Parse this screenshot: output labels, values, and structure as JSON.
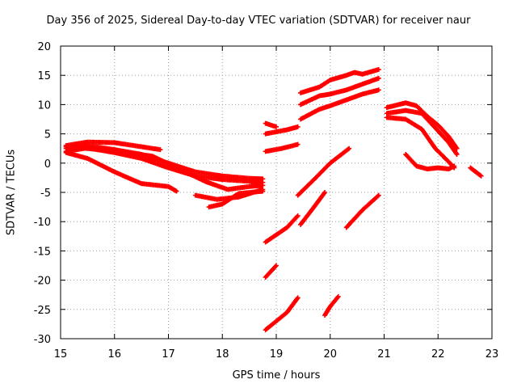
{
  "chart_data": {
    "type": "scatter",
    "title": "Day 356 of 2025, Sidereal Day-to-day VTEC variation (SDTVAR) for receiver naur",
    "xlabel": "GPS time / hours",
    "ylabel": "SDTVAR / TECUs",
    "xlim": [
      15,
      23
    ],
    "ylim": [
      -30,
      20
    ],
    "xticks": [
      "15",
      "16",
      "17",
      "18",
      "19",
      "20",
      "21",
      "22",
      "23"
    ],
    "yticks": [
      "20",
      "15",
      "10",
      "5",
      "0",
      "-5",
      "-10",
      "-15",
      "-20",
      "-25",
      "-30"
    ],
    "grid": true,
    "marker_color": "#ff0000",
    "series": [
      {
        "points": [
          [
            15.1,
            3.0
          ],
          [
            15.5,
            3.6
          ],
          [
            16.0,
            3.5
          ],
          [
            16.5,
            2.8
          ],
          [
            16.85,
            2.3
          ]
        ]
      },
      {
        "points": [
          [
            15.1,
            2.5
          ],
          [
            15.5,
            3.0
          ],
          [
            16.0,
            2.3
          ],
          [
            16.5,
            1.5
          ],
          [
            17.0,
            0.0
          ],
          [
            17.5,
            -1.5
          ],
          [
            18.0,
            -2.2
          ],
          [
            18.5,
            -2.6
          ],
          [
            18.75,
            -2.7
          ]
        ]
      },
      {
        "points": [
          [
            15.1,
            2.0
          ],
          [
            15.5,
            2.6
          ],
          [
            16.0,
            1.8
          ],
          [
            16.5,
            0.8
          ],
          [
            17.0,
            -0.8
          ],
          [
            17.5,
            -2.2
          ],
          [
            18.0,
            -2.8
          ],
          [
            18.5,
            -3.1
          ],
          [
            18.75,
            -3.3
          ]
        ]
      },
      {
        "points": [
          [
            15.1,
            2.8
          ],
          [
            15.5,
            2.5
          ],
          [
            16.0,
            2.0
          ],
          [
            16.7,
            1.2
          ],
          [
            17.2,
            -1.0
          ],
          [
            17.7,
            -3.2
          ],
          [
            18.1,
            -4.5
          ],
          [
            18.5,
            -4.0
          ],
          [
            18.75,
            -3.8
          ]
        ]
      },
      {
        "points": [
          [
            15.1,
            1.8
          ],
          [
            15.5,
            0.8
          ],
          [
            16.0,
            -1.5
          ],
          [
            16.5,
            -3.5
          ],
          [
            17.0,
            -4.0
          ],
          [
            17.15,
            -4.8
          ]
        ]
      },
      {
        "points": [
          [
            17.5,
            -5.5
          ],
          [
            17.9,
            -6.2
          ],
          [
            18.3,
            -5.8
          ],
          [
            18.75,
            -4.5
          ]
        ]
      },
      {
        "points": [
          [
            17.75,
            -7.5
          ],
          [
            18.0,
            -7.0
          ],
          [
            18.3,
            -5.2
          ],
          [
            18.75,
            -4.8
          ]
        ]
      },
      {
        "points": [
          [
            18.8,
            6.8
          ],
          [
            19.0,
            6.2
          ]
        ]
      },
      {
        "points": [
          [
            18.8,
            5.0
          ],
          [
            19.2,
            5.7
          ],
          [
            19.4,
            6.2
          ]
        ]
      },
      {
        "points": [
          [
            18.8,
            2.0
          ],
          [
            19.1,
            2.5
          ],
          [
            19.4,
            3.2
          ]
        ]
      },
      {
        "points": [
          [
            18.8,
            -13.5
          ],
          [
            19.2,
            -11.0
          ],
          [
            19.4,
            -9.0
          ]
        ]
      },
      {
        "points": [
          [
            18.8,
            -19.5
          ],
          [
            19.0,
            -17.5
          ]
        ]
      },
      {
        "points": [
          [
            18.8,
            -28.5
          ],
          [
            19.2,
            -25.5
          ],
          [
            19.4,
            -23.0
          ]
        ]
      },
      {
        "points": [
          [
            19.45,
            12.0
          ],
          [
            19.8,
            13.0
          ],
          [
            20.0,
            14.2
          ],
          [
            20.3,
            15.0
          ],
          [
            20.45,
            15.5
          ],
          [
            20.6,
            15.2
          ],
          [
            20.9,
            16.0
          ]
        ]
      },
      {
        "points": [
          [
            19.45,
            10.0
          ],
          [
            19.8,
            11.5
          ],
          [
            20.0,
            11.8
          ],
          [
            20.3,
            12.5
          ],
          [
            20.6,
            13.5
          ],
          [
            20.9,
            14.5
          ]
        ]
      },
      {
        "points": [
          [
            19.45,
            7.5
          ],
          [
            19.8,
            9.2
          ],
          [
            20.0,
            9.8
          ],
          [
            20.3,
            10.8
          ],
          [
            20.6,
            11.8
          ],
          [
            20.9,
            12.5
          ]
        ]
      },
      {
        "points": [
          [
            19.4,
            -5.5
          ],
          [
            19.7,
            -2.8
          ],
          [
            20.0,
            0.0
          ],
          [
            20.35,
            2.5
          ]
        ]
      },
      {
        "points": [
          [
            19.45,
            -10.5
          ],
          [
            19.7,
            -7.5
          ],
          [
            19.9,
            -5.0
          ]
        ]
      },
      {
        "points": [
          [
            20.3,
            -11.0
          ],
          [
            20.6,
            -8.0
          ],
          [
            20.9,
            -5.5
          ]
        ]
      },
      {
        "points": [
          [
            19.9,
            -26.0
          ],
          [
            20.0,
            -24.5
          ],
          [
            20.15,
            -22.8
          ]
        ]
      },
      {
        "points": [
          [
            21.05,
            9.5
          ],
          [
            21.4,
            10.3
          ],
          [
            21.6,
            9.8
          ],
          [
            21.8,
            8.0
          ],
          [
            22.0,
            6.5
          ],
          [
            22.2,
            4.5
          ],
          [
            22.35,
            2.5
          ]
        ]
      },
      {
        "points": [
          [
            21.05,
            8.5
          ],
          [
            21.4,
            9.0
          ],
          [
            21.7,
            8.5
          ],
          [
            21.95,
            6.0
          ],
          [
            22.2,
            3.5
          ],
          [
            22.35,
            1.5
          ]
        ]
      },
      {
        "points": [
          [
            21.05,
            7.8
          ],
          [
            21.4,
            7.5
          ],
          [
            21.7,
            5.8
          ],
          [
            21.95,
            2.5
          ],
          [
            22.2,
            0.2
          ],
          [
            22.3,
            -0.8
          ]
        ]
      },
      {
        "points": [
          [
            21.4,
            1.5
          ],
          [
            21.6,
            -0.5
          ],
          [
            21.8,
            -1.0
          ],
          [
            22.0,
            -0.8
          ],
          [
            22.2,
            -1.0
          ],
          [
            22.3,
            -0.5
          ]
        ]
      },
      {
        "points": [
          [
            22.6,
            -0.8
          ],
          [
            22.7,
            -1.5
          ],
          [
            22.8,
            -2.2
          ]
        ]
      }
    ]
  }
}
